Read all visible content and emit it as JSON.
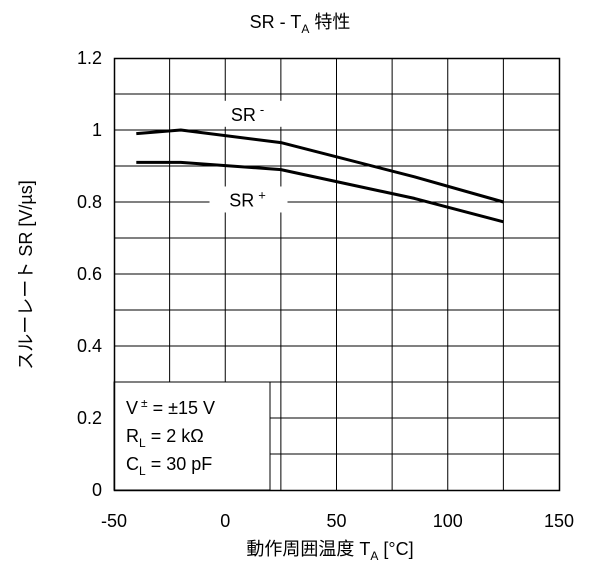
{
  "chart_data": {
    "type": "line",
    "title": {
      "main": "SR - T",
      "sub": "A",
      "suffix": " 特性"
    },
    "xlabel": {
      "main": "動作周囲温度 T",
      "sub": "A",
      "suffix": " [°C]"
    },
    "ylabel": "スルーレート SR [V/µs]",
    "xlim": [
      -50,
      150
    ],
    "ylim": [
      0,
      1.2
    ],
    "x_ticks": [
      "-50",
      "0",
      "50",
      "100",
      "150"
    ],
    "x_tick_values": [
      -50,
      0,
      50,
      100,
      150
    ],
    "y_ticks": [
      "0",
      "0.2",
      "0.4",
      "0.6",
      "0.8",
      "1",
      "1.2"
    ],
    "y_tick_values": [
      0,
      0.2,
      0.4,
      0.6,
      0.8,
      1,
      1.2
    ],
    "grid": true,
    "x_grid_step": 25,
    "y_grid_step": 0.1,
    "series": [
      {
        "name": "SR⁻",
        "label_main": "SR",
        "label_sup": "-",
        "x": [
          -40,
          -20,
          25,
          85,
          125
        ],
        "y": [
          0.99,
          1.0,
          0.965,
          0.87,
          0.8
        ]
      },
      {
        "name": "SR⁺",
        "label_main": "SR",
        "label_sup": "+",
        "x": [
          -40,
          -20,
          25,
          85,
          125
        ],
        "y": [
          0.91,
          0.91,
          0.89,
          0.81,
          0.745
        ]
      }
    ],
    "conditions": {
      "line1": {
        "a": "V",
        "sup": "±",
        "b": " = ±15 V"
      },
      "line2": {
        "a": "R",
        "sub": "L",
        "b": " = 2 kΩ"
      },
      "line3": {
        "a": "C",
        "sub": "L",
        "b": " = 30 pF"
      }
    },
    "colors": {
      "line": "#000000",
      "grid": "#000000",
      "background": "#ffffff"
    }
  }
}
